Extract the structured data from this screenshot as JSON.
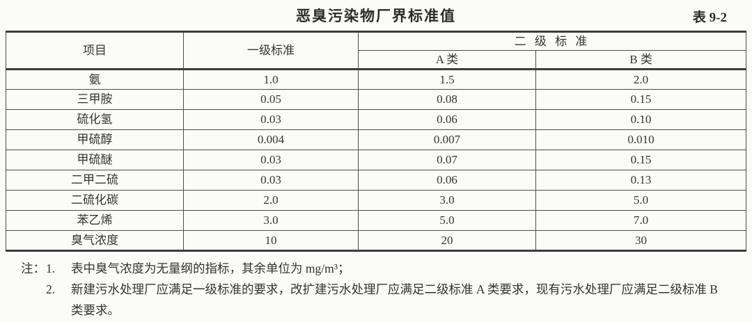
{
  "header": {
    "title": "恶臭污染物厂界标准值",
    "table_number": "表 9-2"
  },
  "table": {
    "columns": {
      "item": "项目",
      "level1": "一级标准",
      "level2": "二 级 标 准",
      "class_a": "A 类",
      "class_b": "B 类"
    },
    "rows": [
      {
        "item": "氨",
        "level1": "1.0",
        "class_a": "1.5",
        "class_b": "2.0"
      },
      {
        "item": "三甲胺",
        "level1": "0.05",
        "class_a": "0.08",
        "class_b": "0.15"
      },
      {
        "item": "硫化氢",
        "level1": "0.03",
        "class_a": "0.06",
        "class_b": "0.10"
      },
      {
        "item": "甲硫醇",
        "level1": "0.004",
        "class_a": "0.007",
        "class_b": "0.010"
      },
      {
        "item": "甲硫醚",
        "level1": "0.03",
        "class_a": "0.07",
        "class_b": "0.15"
      },
      {
        "item": "二甲二硫",
        "level1": "0.03",
        "class_a": "0.06",
        "class_b": "0.13"
      },
      {
        "item": "二硫化碳",
        "level1": "2.0",
        "class_a": "3.0",
        "class_b": "5.0"
      },
      {
        "item": "苯乙烯",
        "level1": "3.0",
        "class_a": "5.0",
        "class_b": "7.0"
      },
      {
        "item": "臭气浓度",
        "level1": "10",
        "class_a": "20",
        "class_b": "30"
      }
    ]
  },
  "notes": {
    "label": "注：",
    "items": [
      {
        "num": "1.",
        "text": "表中臭气浓度为无量纲的指标，其余单位为 mg/m³；"
      },
      {
        "num": "2.",
        "text": "新建污水处理厂应满足一级标准的要求，改扩建污水处理厂应满足二级标准 A 类要求，现有污水处理厂应满足二级标准 B 类要求。"
      }
    ]
  }
}
